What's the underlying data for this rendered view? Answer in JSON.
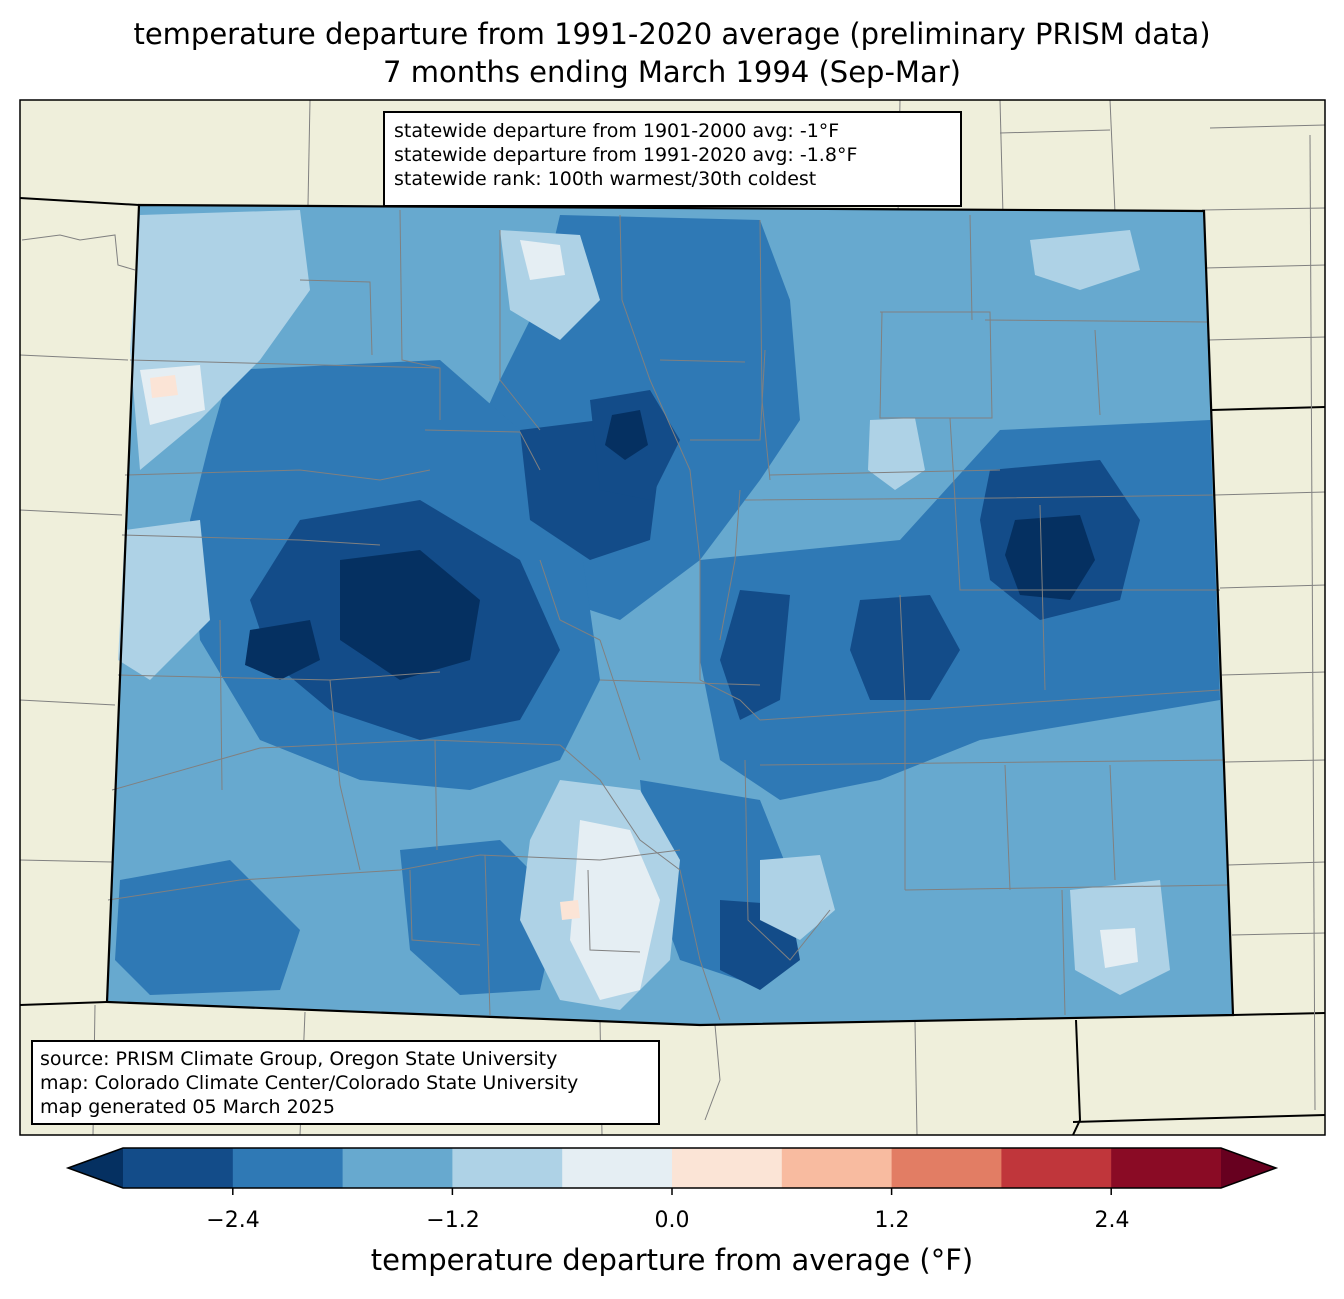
{
  "title": {
    "line1": "temperature departure from 1991-2020 average (preliminary PRISM data)",
    "line2": "7 months ending March 1994 (Sep-Mar)"
  },
  "stats_box": {
    "line1": "statewide departure from 1901-2000 avg: -1°F",
    "line2": "statewide departure from 1991-2020 avg: -1.8°F",
    "line3": "statewide rank: 100th warmest/30th coldest"
  },
  "credits_box": {
    "line1": "source: PRISM Climate Group, Oregon State University",
    "line2": "map: Colorado Climate Center/Colorado State University",
    "line3": "map generated 05 March 2025"
  },
  "colorbar": {
    "label": "temperature departure from average (°F)",
    "ticks": [
      "−2.4",
      "−1.2",
      "0.0",
      "1.2",
      "2.4"
    ],
    "tick_values": [
      -2.4,
      -1.2,
      0.0,
      1.2,
      2.4
    ],
    "bounds": [
      -3.0,
      3.0
    ],
    "step": 0.6,
    "colors": [
      "#053061",
      "#134c89",
      "#2f79b5",
      "#67a9cf",
      "#aed2e6",
      "#e5eef3",
      "#fbe4d6",
      "#f8bba0",
      "#e27d64",
      "#c0363b",
      "#8a0b25",
      "#67001f"
    ]
  },
  "colors": {
    "land": "#efefdb",
    "border": "#808080",
    "state_border": "#000000"
  }
}
